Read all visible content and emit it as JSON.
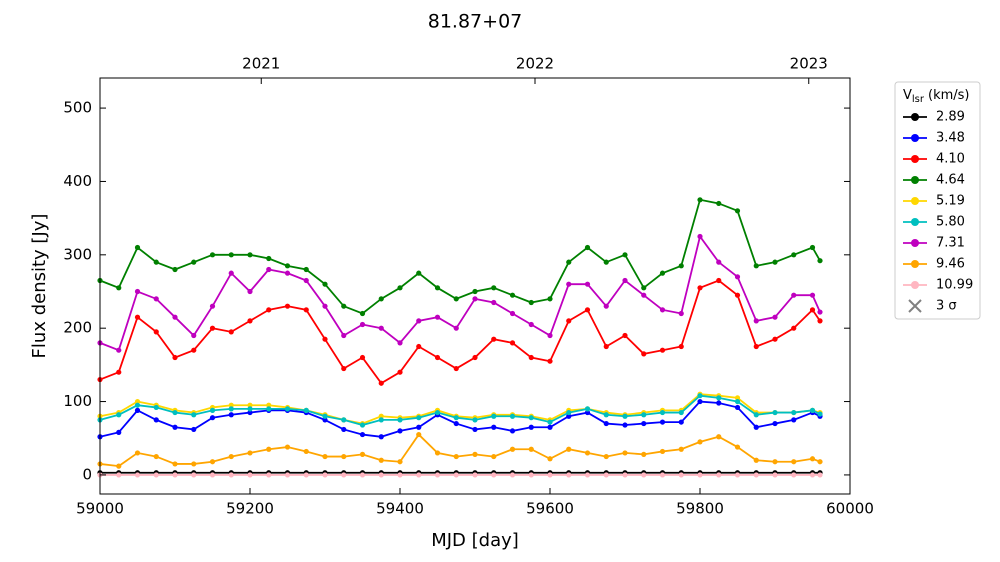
{
  "chart_data": {
    "type": "line",
    "title": "81.87+07",
    "xlabel": "MJD [day]",
    "ylabel": "Flux density [Jy]",
    "legend_title": {
      "main": "V",
      "sub": "lsr",
      "rest": "(km/s)"
    },
    "legend_position": "outside-right",
    "x": [
      59000,
      59025,
      59050,
      59075,
      59100,
      59125,
      59150,
      59175,
      59200,
      59225,
      59250,
      59275,
      59300,
      59325,
      59350,
      59375,
      59400,
      59425,
      59450,
      59475,
      59500,
      59525,
      59550,
      59575,
      59600,
      59625,
      59650,
      59675,
      59700,
      59725,
      59750,
      59775,
      59800,
      59825,
      59850,
      59875,
      59900,
      59925,
      59950,
      59960
    ],
    "xlim": [
      59000,
      60000
    ],
    "xticks": [
      59000,
      59200,
      59400,
      59600,
      59800,
      60000
    ],
    "x2ticks": [
      {
        "value": 59215,
        "label": "2021"
      },
      {
        "value": 59580,
        "label": "2022"
      },
      {
        "value": 59945,
        "label": "2023"
      }
    ],
    "ylim": [
      -26,
      541
    ],
    "yticks": [
      0,
      100,
      200,
      300,
      400,
      500
    ],
    "series": [
      {
        "name": "2.89",
        "color": "#000000",
        "values": [
          3,
          3,
          3,
          3,
          3,
          3,
          3,
          3,
          3,
          3,
          3,
          3,
          3,
          3,
          3,
          3,
          3,
          3,
          3,
          3,
          3,
          3,
          3,
          3,
          3,
          3,
          3,
          3,
          3,
          3,
          3,
          3,
          3,
          3,
          3,
          3,
          3,
          3,
          3,
          3
        ]
      },
      {
        "name": "3.48",
        "color": "#0000ff",
        "values": [
          52,
          58,
          88,
          75,
          65,
          62,
          78,
          82,
          85,
          88,
          88,
          85,
          75,
          62,
          55,
          52,
          60,
          65,
          82,
          70,
          62,
          65,
          60,
          65,
          65,
          80,
          85,
          70,
          68,
          70,
          72,
          72,
          100,
          98,
          92,
          65,
          70,
          75,
          85,
          80
        ]
      },
      {
        "name": "4.10",
        "color": "#ff0000",
        "values": [
          130,
          140,
          215,
          195,
          160,
          170,
          200,
          195,
          210,
          225,
          230,
          225,
          185,
          145,
          160,
          125,
          140,
          175,
          160,
          145,
          160,
          185,
          180,
          160,
          155,
          210,
          225,
          175,
          190,
          165,
          170,
          175,
          255,
          265,
          245,
          175,
          185,
          200,
          225,
          210
        ]
      },
      {
        "name": "4.64",
        "color": "#008000",
        "values": [
          265,
          255,
          310,
          290,
          280,
          290,
          300,
          300,
          300,
          295,
          285,
          280,
          260,
          230,
          220,
          240,
          255,
          275,
          255,
          240,
          250,
          255,
          245,
          235,
          240,
          290,
          310,
          290,
          300,
          255,
          275,
          285,
          375,
          370,
          360,
          285,
          290,
          300,
          310,
          292
        ]
      },
      {
        "name": "5.19",
        "color": "#ffd700",
        "values": [
          80,
          85,
          100,
          95,
          88,
          85,
          92,
          95,
          95,
          95,
          92,
          88,
          82,
          75,
          70,
          80,
          78,
          80,
          88,
          80,
          78,
          82,
          82,
          80,
          75,
          88,
          90,
          85,
          82,
          85,
          88,
          88,
          110,
          108,
          105,
          85,
          85,
          85,
          88,
          85
        ]
      },
      {
        "name": "5.80",
        "color": "#00bfbf",
        "values": [
          75,
          82,
          95,
          92,
          85,
          82,
          88,
          90,
          90,
          90,
          90,
          88,
          80,
          75,
          68,
          75,
          75,
          78,
          85,
          78,
          75,
          80,
          80,
          78,
          72,
          85,
          90,
          82,
          80,
          82,
          85,
          85,
          108,
          105,
          100,
          82,
          85,
          85,
          88,
          83
        ]
      },
      {
        "name": "7.31",
        "color": "#bf00bf",
        "values": [
          180,
          170,
          250,
          240,
          215,
          190,
          230,
          275,
          250,
          280,
          275,
          265,
          230,
          190,
          205,
          200,
          180,
          210,
          215,
          200,
          240,
          235,
          220,
          205,
          190,
          260,
          260,
          230,
          265,
          245,
          225,
          220,
          325,
          290,
          270,
          210,
          215,
          245,
          245,
          222
        ]
      },
      {
        "name": "9.46",
        "color": "#ffa500",
        "values": [
          15,
          12,
          30,
          25,
          15,
          15,
          18,
          25,
          30,
          35,
          38,
          32,
          25,
          25,
          28,
          20,
          18,
          55,
          30,
          25,
          28,
          25,
          35,
          35,
          22,
          35,
          30,
          25,
          30,
          28,
          32,
          35,
          45,
          52,
          38,
          20,
          18,
          18,
          22,
          18
        ]
      },
      {
        "name": "10.99",
        "color": "#ffb6c1",
        "values": [
          0,
          0,
          0,
          0,
          0,
          0,
          0,
          0,
          0,
          0,
          0,
          0,
          0,
          0,
          0,
          0,
          0,
          0,
          0,
          0,
          0,
          0,
          0,
          0,
          0,
          0,
          0,
          0,
          0,
          0,
          0,
          0,
          0,
          0,
          0,
          0,
          0,
          0,
          0,
          0
        ]
      }
    ],
    "legend_extra": {
      "label": "3 σ",
      "color": "#808080",
      "marker": "x"
    }
  }
}
